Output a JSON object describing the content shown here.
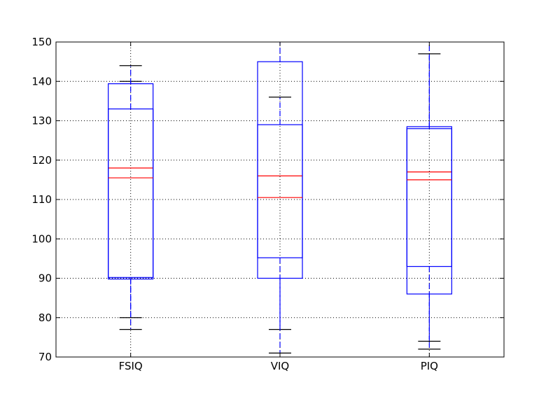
{
  "chart_data": {
    "type": "boxplot",
    "title": "",
    "xlabel": "",
    "ylabel": "",
    "categories": [
      "FSIQ",
      "VIQ",
      "PIQ"
    ],
    "ylim": [
      70,
      150
    ],
    "yticks": [
      70,
      80,
      90,
      100,
      110,
      120,
      130,
      140,
      150
    ],
    "grid": true,
    "groups": [
      {
        "category": "FSIQ",
        "boxes": [
          {
            "q1": 89.8,
            "median": 118.0,
            "q3": 139.4,
            "whisker_low": 80,
            "whisker_high": 140
          },
          {
            "q1": 90.2,
            "median": 115.5,
            "q3": 133.0,
            "whisker_low": 77,
            "whisker_high": 144
          }
        ]
      },
      {
        "category": "VIQ",
        "boxes": [
          {
            "q1": 90.0,
            "median": 116.0,
            "q3": 145.0,
            "whisker_low": 77,
            "whisker_high": 150
          },
          {
            "q1": 95.2,
            "median": 110.5,
            "q3": 129.0,
            "whisker_low": 71,
            "whisker_high": 136
          }
        ]
      },
      {
        "category": "PIQ",
        "boxes": [
          {
            "q1": 86.0,
            "median": 117.0,
            "q3": 128.5,
            "whisker_low": 74,
            "whisker_high": 150
          },
          {
            "q1": 93.0,
            "median": 115.0,
            "q3": 128.0,
            "whisker_low": 72,
            "whisker_high": 147
          }
        ]
      }
    ],
    "colors": {
      "box": "#0000ff",
      "median": "#ff0000",
      "cap": "#000000",
      "grid": "#000000"
    }
  }
}
